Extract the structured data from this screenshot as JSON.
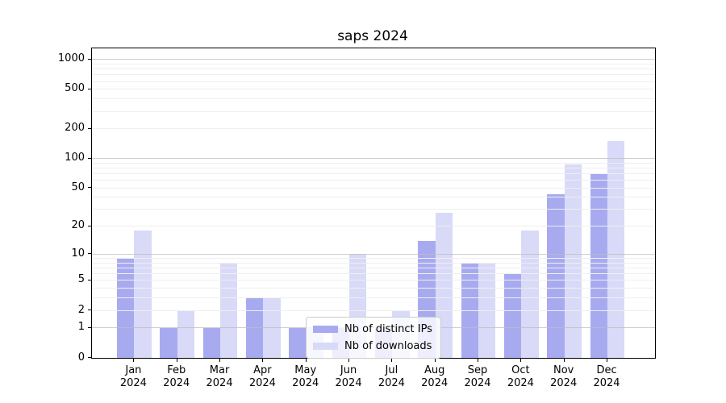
{
  "chart_data": {
    "type": "bar",
    "title": "saps 2024",
    "scale": "log1p",
    "ylim": [
      0,
      1290
    ],
    "grid": "on",
    "legend_position": "lower center",
    "categories": [
      [
        "Jan",
        "2024"
      ],
      [
        "Feb",
        "2024"
      ],
      [
        "Mar",
        "2024"
      ],
      [
        "Apr",
        "2024"
      ],
      [
        "May",
        "2024"
      ],
      [
        "Jun",
        "2024"
      ],
      [
        "Jul",
        "2024"
      ],
      [
        "Aug",
        "2024"
      ],
      [
        "Sep",
        "2024"
      ],
      [
        "Oct",
        "2024"
      ],
      [
        "Nov",
        "2024"
      ],
      [
        "Dec",
        "2024"
      ]
    ],
    "series": [
      {
        "name": "Nb of distinct IPs",
        "color": "#a8aaf0",
        "values": [
          9,
          1,
          1,
          3,
          1,
          1,
          1,
          14,
          8,
          6,
          43,
          70
        ]
      },
      {
        "name": "Nb of downloads",
        "color": "#d8daf8",
        "values": [
          18,
          2,
          8,
          3,
          1,
          10,
          2,
          28,
          8,
          18,
          87,
          150
        ]
      }
    ],
    "y_ticks": [
      0,
      1,
      2,
      5,
      10,
      20,
      50,
      100,
      200,
      500,
      1000
    ],
    "major_gridlines": [
      1,
      10,
      100,
      1000
    ],
    "minor_gridlines": [
      2,
      3,
      4,
      5,
      6,
      7,
      8,
      9,
      20,
      30,
      40,
      50,
      60,
      70,
      80,
      90,
      200,
      300,
      400,
      500,
      600,
      700,
      800,
      900
    ]
  },
  "colors": {
    "axis": "#000000",
    "grid_major": "#bdbdbd",
    "grid_minor": "#efefef",
    "background": "#ffffff"
  }
}
